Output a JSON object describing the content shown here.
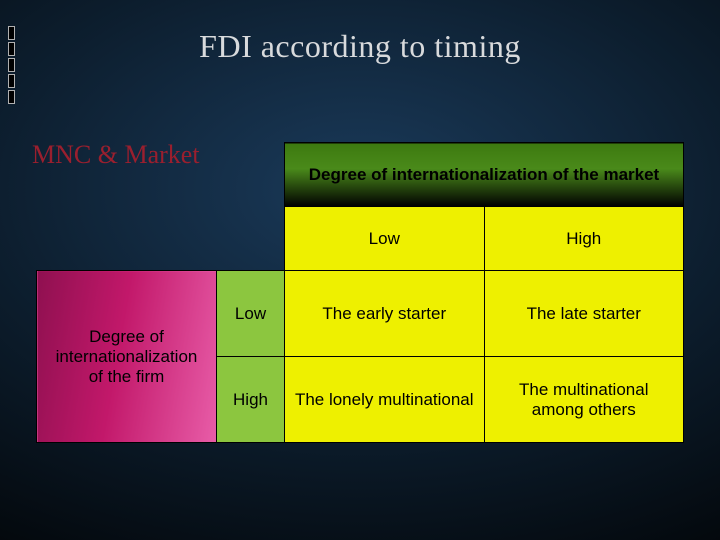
{
  "title": "FDI according to timing",
  "subtitle": "MNC & Market",
  "matrix": {
    "type": "matrix-2x2",
    "col_axis_label": "Degree of internationalization of the market",
    "row_axis_label": "Degree of internationalization of the firm",
    "col_levels": [
      "Low",
      "High"
    ],
    "row_levels": [
      "Low",
      "High"
    ],
    "cells": {
      "low_low": "The early starter",
      "low_high": "The late starter",
      "high_low": "The lonely multinational",
      "high_high": "The multinational among others"
    },
    "colors": {
      "background_gradient": [
        "#1a3a5a",
        "#0d1f30",
        "#000000"
      ],
      "title_color": "#d8dadc",
      "subtitle_color": "#9a1f2e",
      "col_header_gradient": [
        "#3d7a10",
        "#4a8a1a",
        "#000000"
      ],
      "row_header_gradient": [
        "#8f1050",
        "#c2186a",
        "#e85da8"
      ],
      "level_green": "#8cc63f",
      "cell_yellow": "#eef000",
      "border": "#000000"
    },
    "fonts": {
      "title_family": "Georgia serif",
      "title_size_pt": 24,
      "body_family": "Arial",
      "body_size_pt": 13,
      "header_weight": 700
    }
  }
}
